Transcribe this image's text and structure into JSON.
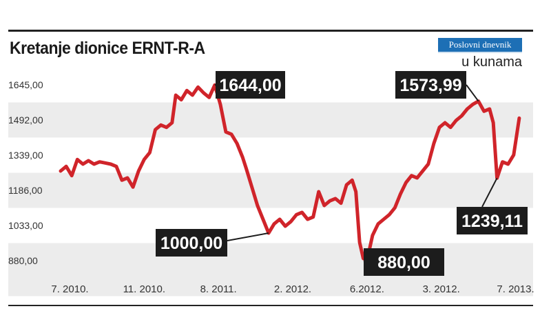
{
  "header": {
    "title": "Kretanje dionice ERNT-R-A",
    "brand": "Poslovni dnevnik",
    "unit": "u kunama"
  },
  "colors": {
    "line": "#d0242a",
    "band": "#ececec",
    "callout": "#1c1c1c"
  },
  "chart_data": {
    "type": "line",
    "title": "Kretanje dionice ERNT-R-A",
    "ylabel": "u kunama",
    "xlabel": "",
    "ylim": [
      880,
      1645
    ],
    "y_ticks": [
      {
        "value": 1645,
        "label": "1645,00"
      },
      {
        "value": 1492,
        "label": "1492,00"
      },
      {
        "value": 1339,
        "label": "1339,00"
      },
      {
        "value": 1186,
        "label": "1186,00"
      },
      {
        "value": 1033,
        "label": "1033,00"
      },
      {
        "value": 880,
        "label": "880,00"
      }
    ],
    "x_ticks": [
      {
        "t": 0.5,
        "label": "7. 2010."
      },
      {
        "t": 4.5,
        "label": "11. 2010."
      },
      {
        "t": 8.5,
        "label": "8. 2011."
      },
      {
        "t": 12.5,
        "label": "2. 2012."
      },
      {
        "t": 16.5,
        "label": "6.2012."
      },
      {
        "t": 20.5,
        "label": "3. 2012."
      },
      {
        "t": 24.5,
        "label": "7. 2013."
      }
    ],
    "series": [
      {
        "name": "ERNT-R-A",
        "points": [
          [
            0.0,
            1270
          ],
          [
            0.3,
            1290
          ],
          [
            0.6,
            1250
          ],
          [
            0.9,
            1320
          ],
          [
            1.2,
            1300
          ],
          [
            1.5,
            1315
          ],
          [
            1.8,
            1300
          ],
          [
            2.1,
            1310
          ],
          [
            2.4,
            1305
          ],
          [
            2.7,
            1300
          ],
          [
            3.0,
            1290
          ],
          [
            3.3,
            1230
          ],
          [
            3.6,
            1240
          ],
          [
            3.9,
            1200
          ],
          [
            4.2,
            1270
          ],
          [
            4.5,
            1320
          ],
          [
            4.8,
            1350
          ],
          [
            5.1,
            1450
          ],
          [
            5.4,
            1470
          ],
          [
            5.7,
            1460
          ],
          [
            6.0,
            1480
          ],
          [
            6.2,
            1600
          ],
          [
            6.5,
            1580
          ],
          [
            6.8,
            1620
          ],
          [
            7.1,
            1600
          ],
          [
            7.4,
            1635
          ],
          [
            7.7,
            1610
          ],
          [
            8.0,
            1590
          ],
          [
            8.3,
            1644
          ],
          [
            8.6,
            1560
          ],
          [
            8.9,
            1440
          ],
          [
            9.2,
            1430
          ],
          [
            9.5,
            1390
          ],
          [
            9.8,
            1330
          ],
          [
            10.0,
            1280
          ],
          [
            10.3,
            1200
          ],
          [
            10.6,
            1120
          ],
          [
            10.9,
            1060
          ],
          [
            11.2,
            1000
          ],
          [
            11.5,
            1040
          ],
          [
            11.8,
            1060
          ],
          [
            12.1,
            1030
          ],
          [
            12.4,
            1050
          ],
          [
            12.7,
            1080
          ],
          [
            13.0,
            1090
          ],
          [
            13.3,
            1060
          ],
          [
            13.6,
            1070
          ],
          [
            13.9,
            1180
          ],
          [
            14.2,
            1120
          ],
          [
            14.5,
            1140
          ],
          [
            14.8,
            1150
          ],
          [
            15.1,
            1130
          ],
          [
            15.4,
            1210
          ],
          [
            15.7,
            1230
          ],
          [
            15.9,
            1180
          ],
          [
            16.1,
            960
          ],
          [
            16.3,
            890
          ],
          [
            16.5,
            880
          ],
          [
            16.8,
            990
          ],
          [
            17.1,
            1040
          ],
          [
            17.4,
            1060
          ],
          [
            17.7,
            1080
          ],
          [
            18.0,
            1110
          ],
          [
            18.3,
            1170
          ],
          [
            18.6,
            1220
          ],
          [
            18.9,
            1250
          ],
          [
            19.2,
            1240
          ],
          [
            19.5,
            1270
          ],
          [
            19.8,
            1300
          ],
          [
            20.1,
            1390
          ],
          [
            20.4,
            1460
          ],
          [
            20.7,
            1480
          ],
          [
            21.0,
            1460
          ],
          [
            21.3,
            1490
          ],
          [
            21.6,
            1510
          ],
          [
            21.9,
            1540
          ],
          [
            22.2,
            1560
          ],
          [
            22.5,
            1574
          ],
          [
            22.8,
            1530
          ],
          [
            23.1,
            1540
          ],
          [
            23.3,
            1480
          ],
          [
            23.5,
            1239
          ],
          [
            23.8,
            1310
          ],
          [
            24.1,
            1300
          ],
          [
            24.4,
            1340
          ],
          [
            24.7,
            1500
          ]
        ]
      }
    ],
    "annotations": [
      {
        "label": "1644,00",
        "t": 8.3,
        "value": 1644
      },
      {
        "label": "1000,00",
        "t": 11.2,
        "value": 1000
      },
      {
        "label": "880,00",
        "t": 16.5,
        "value": 880
      },
      {
        "label": "1573,99",
        "t": 22.5,
        "value": 1574
      },
      {
        "label": "1239,11",
        "t": 23.5,
        "value": 1239
      }
    ]
  }
}
